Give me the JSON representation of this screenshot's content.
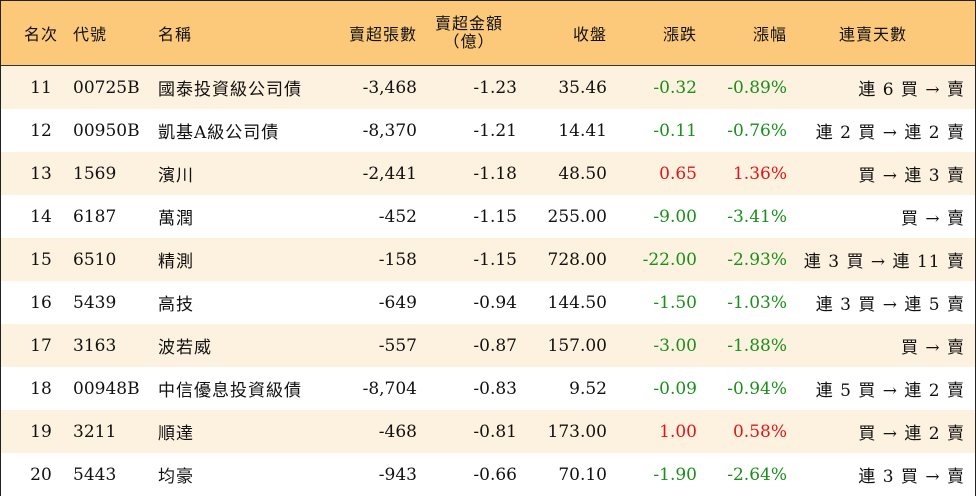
{
  "headers": {
    "rank": "名次",
    "code": "代號",
    "name": "名稱",
    "qty": "賣超張數",
    "amt_line1": "賣超金額",
    "amt_line2": "（億）",
    "close": "收盤",
    "chg": "漲跌",
    "pct": "漲幅",
    "days": "連賣天數"
  },
  "rows": [
    {
      "rank": "11",
      "code": "00725B",
      "name": "國泰投資級公司債",
      "qty": "-3,468",
      "amt": "-1.23",
      "close": "35.46",
      "chg": "-0.32",
      "pct": "-0.89%",
      "days": "連 6 買 → 賣",
      "trend": "down"
    },
    {
      "rank": "12",
      "code": "00950B",
      "name": "凱基A級公司債",
      "qty": "-8,370",
      "amt": "-1.21",
      "close": "14.41",
      "chg": "-0.11",
      "pct": "-0.76%",
      "days": "連 2 買 → 連 2 賣",
      "trend": "down"
    },
    {
      "rank": "13",
      "code": "1569",
      "name": "濱川",
      "qty": "-2,441",
      "amt": "-1.18",
      "close": "48.50",
      "chg": "0.65",
      "pct": "1.36%",
      "days": "買 → 連 3 賣",
      "trend": "up"
    },
    {
      "rank": "14",
      "code": "6187",
      "name": "萬潤",
      "qty": "-452",
      "amt": "-1.15",
      "close": "255.00",
      "chg": "-9.00",
      "pct": "-3.41%",
      "days": "買 → 賣",
      "trend": "down"
    },
    {
      "rank": "15",
      "code": "6510",
      "name": "精測",
      "qty": "-158",
      "amt": "-1.15",
      "close": "728.00",
      "chg": "-22.00",
      "pct": "-2.93%",
      "days": "連 3 買 → 連 11 賣",
      "trend": "down"
    },
    {
      "rank": "16",
      "code": "5439",
      "name": "高技",
      "qty": "-649",
      "amt": "-0.94",
      "close": "144.50",
      "chg": "-1.50",
      "pct": "-1.03%",
      "days": "連 3 買 → 連 5 賣",
      "trend": "down"
    },
    {
      "rank": "17",
      "code": "3163",
      "name": "波若威",
      "qty": "-557",
      "amt": "-0.87",
      "close": "157.00",
      "chg": "-3.00",
      "pct": "-1.88%",
      "days": "買 → 賣",
      "trend": "down"
    },
    {
      "rank": "18",
      "code": "00948B",
      "name": "中信優息投資級債",
      "qty": "-8,704",
      "amt": "-0.83",
      "close": "9.52",
      "chg": "-0.09",
      "pct": "-0.94%",
      "days": "連 5 買 → 連 2 賣",
      "trend": "down"
    },
    {
      "rank": "19",
      "code": "3211",
      "name": "順達",
      "qty": "-468",
      "amt": "-0.81",
      "close": "173.00",
      "chg": "1.00",
      "pct": "0.58%",
      "days": "買 → 連 2 賣",
      "trend": "up"
    },
    {
      "rank": "20",
      "code": "5443",
      "name": "均豪",
      "qty": "-943",
      "amt": "-0.66",
      "close": "70.10",
      "chg": "-1.90",
      "pct": "-2.64%",
      "days": "連 3 買 → 賣",
      "trend": "down"
    }
  ],
  "colors": {
    "header_bg": "#fcc97a",
    "stripe_bg": "#fdf1df",
    "up": "#e31515",
    "down": "#1a8f1a"
  }
}
